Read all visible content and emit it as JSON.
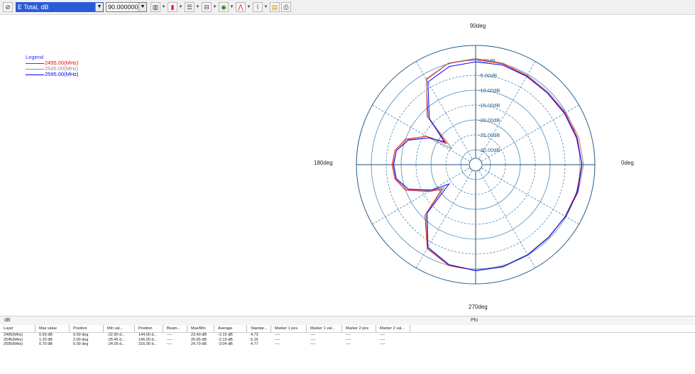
{
  "toolbar": {
    "quantity_combo": "E Total, dB",
    "angle_combo": "90.000000"
  },
  "legend": {
    "title": "Legend",
    "items": [
      {
        "label": "2495.00(MHz)",
        "color": "#ff0000"
      },
      {
        "label": "2545.00(MHz)",
        "color": "#8c8c8c"
      },
      {
        "label": "2595.00(MHz)",
        "color": "#0000ff"
      }
    ]
  },
  "chart_data": {
    "type": "polar",
    "axis_labels": {
      "top": "90deg",
      "left": "180deg",
      "right": "0deg",
      "bottom": "270deg"
    },
    "radial_ticks": [
      "0.00dB",
      "-5.00dB",
      "-10.00dB",
      "-15.00dB",
      "-20.00dB",
      "-25.00dB",
      "-30.00dB"
    ],
    "radial_range_db": [
      -35,
      5
    ],
    "angle_units": "deg",
    "series": [
      {
        "name": "2495.00(MHz)",
        "color": "#ff0000",
        "points": [
          [
            0,
            0.6
          ],
          [
            15,
            0.3
          ],
          [
            30,
            -0.4
          ],
          [
            45,
            -0.9
          ],
          [
            60,
            -0.6
          ],
          [
            75,
            0.0
          ],
          [
            90,
            0.4
          ],
          [
            105,
            0.2
          ],
          [
            120,
            -2
          ],
          [
            135,
            -12
          ],
          [
            144,
            -22.9
          ],
          [
            150,
            -16
          ],
          [
            160,
            -10
          ],
          [
            170,
            -7.5
          ],
          [
            180,
            -7
          ],
          [
            190,
            -7.5
          ],
          [
            200,
            -10
          ],
          [
            210,
            -17
          ],
          [
            216,
            -21
          ],
          [
            225,
            -11
          ],
          [
            240,
            -2.5
          ],
          [
            255,
            0.0
          ],
          [
            270,
            0.5
          ],
          [
            285,
            0.4
          ],
          [
            300,
            -0.1
          ],
          [
            315,
            -0.5
          ],
          [
            330,
            -0.3
          ],
          [
            345,
            0.2
          ]
        ]
      },
      {
        "name": "2545.00(MHz)",
        "color": "#8c8c8c",
        "points": [
          [
            0,
            1.2
          ],
          [
            15,
            0.8
          ],
          [
            30,
            -0.1
          ],
          [
            45,
            -0.6
          ],
          [
            60,
            -0.3
          ],
          [
            75,
            0.3
          ],
          [
            90,
            0.6
          ],
          [
            105,
            0.3
          ],
          [
            120,
            -1.8
          ],
          [
            135,
            -12.5
          ],
          [
            146,
            -25.5
          ],
          [
            150,
            -17
          ],
          [
            160,
            -10.5
          ],
          [
            170,
            -8
          ],
          [
            180,
            -7.3
          ],
          [
            190,
            -7.8
          ],
          [
            200,
            -10.5
          ],
          [
            210,
            -17.5
          ],
          [
            216,
            -22
          ],
          [
            225,
            -11.5
          ],
          [
            240,
            -2.7
          ],
          [
            255,
            -0.2
          ],
          [
            270,
            0.4
          ],
          [
            285,
            0.3
          ],
          [
            300,
            -0.2
          ],
          [
            315,
            -0.6
          ],
          [
            330,
            -0.2
          ],
          [
            345,
            0.6
          ]
        ]
      },
      {
        "name": "2595.00(MHz)",
        "color": "#0000ff",
        "points": [
          [
            0,
            0.7
          ],
          [
            15,
            0.0
          ],
          [
            30,
            -0.6
          ],
          [
            45,
            -1.0
          ],
          [
            60,
            -0.8
          ],
          [
            75,
            -0.4
          ],
          [
            90,
            -0.5
          ],
          [
            105,
            -0.9
          ],
          [
            120,
            -3
          ],
          [
            135,
            -13
          ],
          [
            144,
            -22
          ],
          [
            150,
            -17
          ],
          [
            160,
            -11
          ],
          [
            170,
            -8
          ],
          [
            180,
            -7.5
          ],
          [
            190,
            -8
          ],
          [
            200,
            -11
          ],
          [
            210,
            -18
          ],
          [
            216,
            -24
          ],
          [
            225,
            -12
          ],
          [
            240,
            -3
          ],
          [
            255,
            -0.3
          ],
          [
            270,
            0.6
          ],
          [
            285,
            0.5
          ],
          [
            300,
            0.0
          ],
          [
            315,
            -0.4
          ],
          [
            330,
            -0.2
          ],
          [
            345,
            0.4
          ]
        ]
      }
    ]
  },
  "status": {
    "left": "dB",
    "center": "Phi"
  },
  "table": {
    "headers": [
      "Layer",
      "Max value",
      "Position",
      "Min val...",
      "Position",
      "Beam...",
      "Max/Min",
      "Average",
      "Standar...",
      "Marker 1 pos",
      "Marker 1 val...",
      "Marker 2 pos",
      "Marker 2 val..."
    ],
    "rows": [
      [
        "2495(MHz)",
        "0.59 dB",
        "0.00 deg",
        "-22.90 d...",
        "144.00 d...",
        "----",
        "23.49 dB",
        "-2.15 dB",
        "4.73",
        "----",
        "----",
        "----",
        "----"
      ],
      [
        "2545(MHz)",
        "1.20 dB",
        "2.00 deg",
        "-25.45 d...",
        "146.00 d...",
        "----",
        "26.65 dB",
        "-2.19 dB",
        "5.16",
        "----",
        "----",
        "----",
        "----"
      ],
      [
        "2595(MHz)",
        "0.70 dB",
        "6.00 deg",
        "-24.09 d...",
        "216.00 d...",
        "----",
        "24.79 dB",
        "-3.04 dB",
        "4.77",
        "----",
        "----",
        "----",
        "----"
      ]
    ]
  }
}
